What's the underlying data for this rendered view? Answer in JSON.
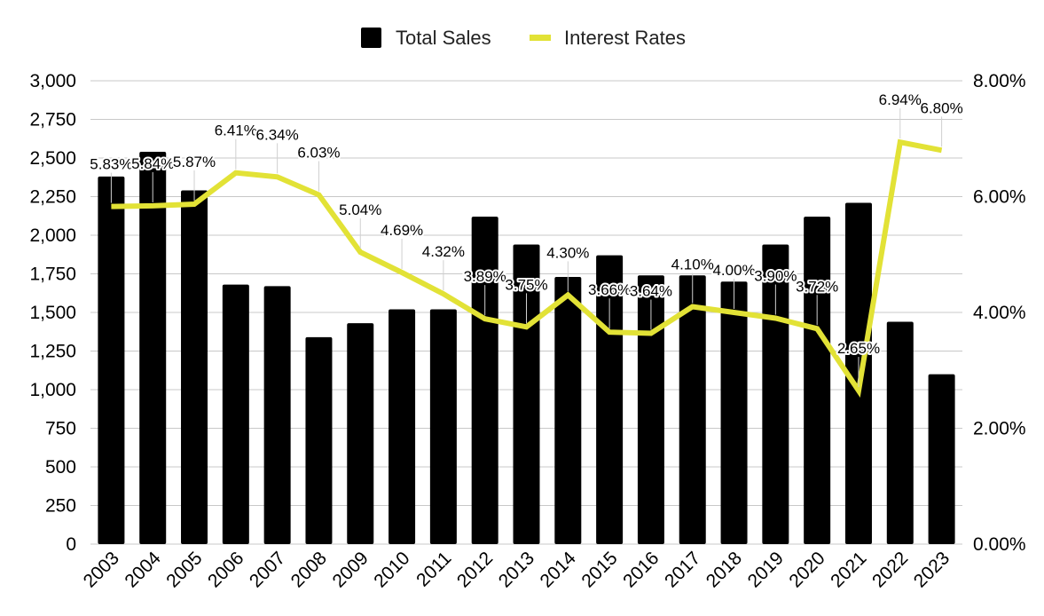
{
  "chart_data": {
    "type": "bar",
    "categories": [
      "2003",
      "2004",
      "2005",
      "2006",
      "2007",
      "2008",
      "2009",
      "2010",
      "2011",
      "2012",
      "2013",
      "2014",
      "2015",
      "2016",
      "2017",
      "2018",
      "2019",
      "2020",
      "2021",
      "2022",
      "2023"
    ],
    "series": [
      {
        "name": "Total Sales",
        "type": "bar",
        "axis": "left",
        "color": "#000000",
        "values": [
          2380,
          2540,
          2290,
          1680,
          1670,
          1340,
          1430,
          1520,
          1520,
          2120,
          1940,
          1730,
          1870,
          1740,
          1740,
          1700,
          1940,
          2120,
          2210,
          1440,
          1100
        ]
      },
      {
        "name": "Interest Rates",
        "type": "line",
        "axis": "right",
        "color": "#e2e236",
        "values": [
          5.83,
          5.84,
          5.87,
          6.41,
          6.34,
          6.03,
          5.04,
          4.69,
          4.32,
          3.89,
          3.75,
          4.3,
          3.66,
          3.64,
          4.1,
          4.0,
          3.9,
          3.72,
          2.65,
          6.94,
          6.8
        ],
        "labels": [
          "5.83%",
          "5.84%",
          "5.87%",
          "6.41%",
          "6.34%",
          "6.03%",
          "5.04%",
          "4.69%",
          "4.32%",
          "3.89%",
          "3.75%",
          "4.30%",
          "3.66%",
          "3.64%",
          "4.10%",
          "4.00%",
          "3.90%",
          "3.72%",
          "2.65%",
          "6.94%",
          "6.80%"
        ]
      }
    ],
    "y_left": {
      "min": 0,
      "max": 3000,
      "ticks": [
        0,
        250,
        500,
        750,
        1000,
        1250,
        1500,
        1750,
        2000,
        2250,
        2500,
        2750,
        3000
      ],
      "tick_labels": [
        "0",
        "250",
        "500",
        "750",
        "1,000",
        "1,250",
        "1,500",
        "1,750",
        "2,000",
        "2,250",
        "2,500",
        "2,750",
        "3,000"
      ]
    },
    "y_right": {
      "min": 0,
      "max": 8,
      "ticks": [
        0,
        2,
        4,
        6,
        8
      ],
      "tick_labels": [
        "0.00%",
        "2.00%",
        "4.00%",
        "6.00%",
        "8.00%"
      ]
    },
    "legend": {
      "position": "top-center",
      "items": [
        {
          "label": "Total Sales",
          "color": "#000000"
        },
        {
          "label": "Interest Rates",
          "color": "#e2e236"
        }
      ]
    },
    "grid": true,
    "title": "",
    "xlabel": "",
    "ylabel": ""
  }
}
